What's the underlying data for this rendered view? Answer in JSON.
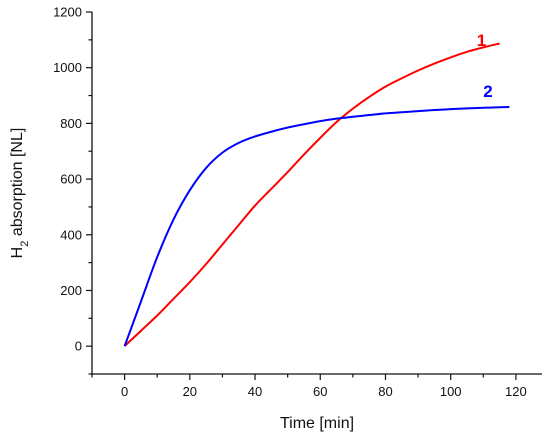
{
  "chart_data": {
    "type": "line",
    "title": "",
    "xlabel": "Time [min]",
    "ylabel_main": "H",
    "ylabel_sub": "2",
    "ylabel_rest": " absorption [NL]",
    "xlim": [
      -10,
      128
    ],
    "ylim": [
      -100,
      1200
    ],
    "xticks": [
      0,
      20,
      40,
      60,
      80,
      100,
      120
    ],
    "yticks": [
      0,
      200,
      400,
      600,
      800,
      1000,
      1200
    ],
    "grid": false,
    "series": [
      {
        "label": "1",
        "color": "#ff0000",
        "label_pos": [
          108,
          1078
        ],
        "x": [
          0,
          5,
          10,
          15,
          20,
          25,
          30,
          35,
          40,
          45,
          50,
          55,
          60,
          65,
          70,
          75,
          80,
          85,
          90,
          95,
          100,
          105,
          110,
          115
        ],
        "y": [
          0,
          55,
          110,
          170,
          230,
          295,
          365,
          435,
          505,
          565,
          625,
          688,
          748,
          805,
          853,
          895,
          932,
          962,
          990,
          1015,
          1037,
          1057,
          1073,
          1087
        ]
      },
      {
        "label": "2",
        "color": "#0000ff",
        "label_pos": [
          110,
          895
        ],
        "x": [
          0,
          5,
          10,
          15,
          20,
          25,
          30,
          35,
          40,
          45,
          50,
          55,
          60,
          65,
          70,
          75,
          80,
          85,
          90,
          95,
          100,
          105,
          110,
          115,
          118
        ],
        "y": [
          0,
          160,
          320,
          455,
          560,
          640,
          695,
          730,
          753,
          770,
          785,
          797,
          808,
          817,
          824,
          830,
          836,
          840,
          844,
          848,
          851,
          854,
          856,
          858,
          859
        ]
      }
    ]
  }
}
